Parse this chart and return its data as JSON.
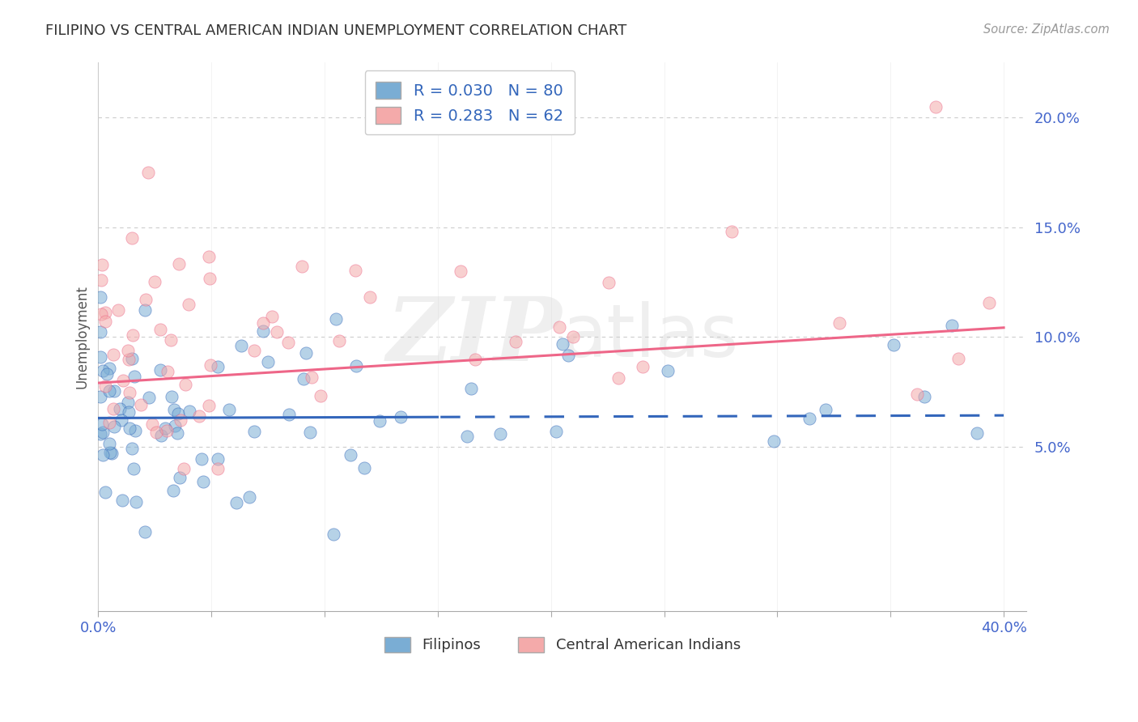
{
  "title": "FILIPINO VS CENTRAL AMERICAN INDIAN UNEMPLOYMENT CORRELATION CHART",
  "source_text": "Source: ZipAtlas.com",
  "ylabel": "Unemployment",
  "xlim": [
    0.0,
    0.41
  ],
  "ylim": [
    -0.025,
    0.225
  ],
  "xticks": [
    0.0,
    0.05,
    0.1,
    0.15,
    0.2,
    0.25,
    0.3,
    0.35,
    0.4
  ],
  "yticks": [
    0.05,
    0.1,
    0.15,
    0.2
  ],
  "ytick_labels": [
    "5.0%",
    "10.0%",
    "15.0%",
    "20.0%"
  ],
  "filipino_color": "#7AADD4",
  "central_american_color": "#F4AAAA",
  "fil_trend_color": "#3366BB",
  "cen_trend_color": "#EE6688",
  "filipino_R": 0.03,
  "filipino_N": 80,
  "central_american_R": 0.283,
  "central_american_N": 62,
  "watermark_zip": "ZIP",
  "watermark_atlas": "atlas",
  "legend_label_1": "Filipinos",
  "legend_label_2": "Central American Indians",
  "background_color": "#FFFFFF",
  "grid_color": "#CCCCCC",
  "title_color": "#333333",
  "source_color": "#999999",
  "axis_value_color": "#4466CC"
}
